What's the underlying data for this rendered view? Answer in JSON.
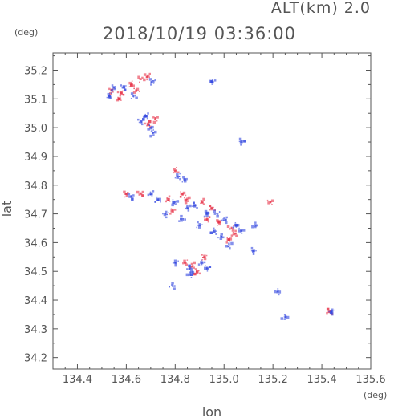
{
  "header": {
    "altitude": "ALT(km) 2.0",
    "datetime": "2018/10/19 03:36:00"
  },
  "chart_data": {
    "type": "scatter",
    "xlabel": "lon",
    "ylabel": "lat",
    "x_unit": "(deg)",
    "y_unit": "(deg)",
    "xlim": [
      134.3,
      135.6
    ],
    "ylim": [
      34.16,
      35.26
    ],
    "xticks": [
      134.4,
      134.6,
      134.8,
      135.0,
      135.2,
      135.4,
      135.6
    ],
    "xtick_labels": [
      "134.4",
      "134.6",
      "134.8",
      "135.0",
      "135.2",
      "135.4",
      "135.6"
    ],
    "yticks": [
      34.2,
      34.3,
      34.4,
      34.5,
      34.6,
      34.7,
      34.8,
      34.9,
      35.0,
      35.1,
      35.2
    ],
    "ytick_labels": [
      "34.2",
      "34.3",
      "34.4",
      "34.5",
      "34.6",
      "34.7",
      "34.8",
      "34.9",
      "35.0",
      "35.1",
      "35.2"
    ],
    "grid": false,
    "colors": {
      "positive": "#e8344a",
      "negative": "#3348e0",
      "axis": "#555555"
    },
    "series": [
      {
        "values": [
          [
            134.54,
            35.13
          ],
          [
            134.58,
            35.12
          ],
          [
            134.62,
            35.15
          ],
          [
            134.66,
            35.17
          ],
          [
            134.69,
            35.18
          ],
          [
            134.57,
            35.1
          ],
          [
            134.64,
            35.13
          ],
          [
            134.72,
            35.03
          ],
          [
            134.69,
            35.01
          ],
          [
            134.8,
            34.85
          ],
          [
            134.6,
            34.77
          ],
          [
            134.66,
            34.77
          ],
          [
            134.77,
            34.75
          ],
          [
            134.83,
            34.77
          ],
          [
            134.85,
            34.75
          ],
          [
            134.91,
            34.74
          ],
          [
            134.95,
            34.72
          ],
          [
            134.98,
            34.67
          ],
          [
            135.03,
            34.65
          ],
          [
            135.04,
            34.63
          ],
          [
            135.02,
            34.61
          ],
          [
            135.19,
            34.74
          ],
          [
            134.87,
            34.52
          ],
          [
            134.89,
            34.5
          ],
          [
            134.92,
            34.55
          ],
          [
            134.84,
            34.53
          ],
          [
            135.43,
            34.36
          ],
          [
            134.79,
            34.71
          ],
          [
            134.93,
            34.68
          ]
        ]
      },
      {
        "values": [
          [
            134.55,
            35.14
          ],
          [
            134.59,
            35.14
          ],
          [
            134.53,
            35.11
          ],
          [
            134.63,
            35.11
          ],
          [
            134.71,
            35.16
          ],
          [
            134.68,
            35.04
          ],
          [
            134.7,
            35.0
          ],
          [
            134.71,
            34.98
          ],
          [
            134.66,
            35.02
          ],
          [
            134.81,
            34.83
          ],
          [
            134.84,
            34.82
          ],
          [
            134.62,
            34.76
          ],
          [
            134.7,
            34.77
          ],
          [
            134.73,
            34.75
          ],
          [
            134.8,
            34.74
          ],
          [
            134.85,
            34.72
          ],
          [
            134.88,
            34.73
          ],
          [
            134.93,
            34.7
          ],
          [
            134.97,
            34.7
          ],
          [
            135.0,
            34.68
          ],
          [
            135.05,
            34.66
          ],
          [
            135.07,
            34.64
          ],
          [
            135.02,
            34.59
          ],
          [
            134.96,
            34.64
          ],
          [
            134.9,
            34.66
          ],
          [
            134.8,
            34.53
          ],
          [
            134.86,
            34.51
          ],
          [
            134.91,
            34.53
          ],
          [
            134.93,
            34.51
          ],
          [
            134.86,
            34.49
          ],
          [
            135.13,
            34.66
          ],
          [
            135.12,
            34.57
          ],
          [
            135.44,
            34.36
          ],
          [
            134.79,
            34.45
          ],
          [
            134.83,
            34.68
          ],
          [
            134.95,
            35.16
          ],
          [
            135.22,
            34.43
          ],
          [
            135.25,
            34.34
          ],
          [
            135.07,
            34.95
          ],
          [
            134.76,
            34.7
          ],
          [
            134.99,
            34.62
          ]
        ]
      }
    ]
  }
}
